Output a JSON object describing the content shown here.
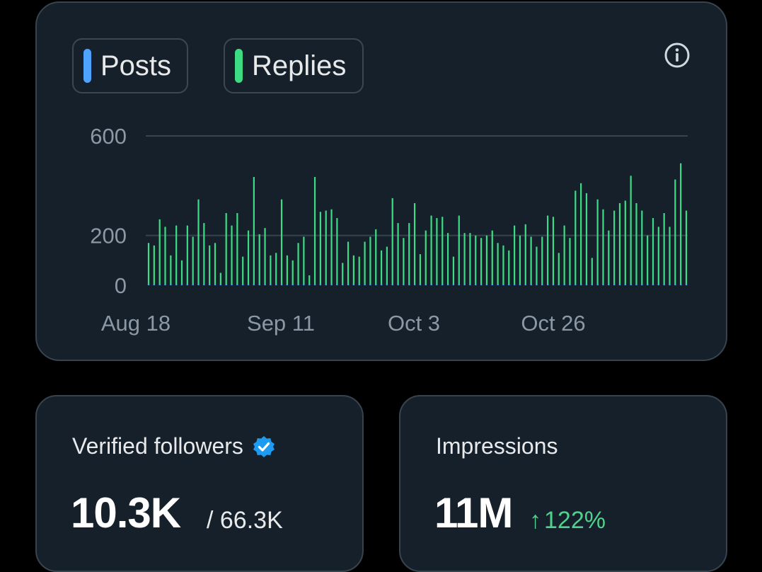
{
  "chart_card": {
    "legend": [
      {
        "label": "Posts",
        "color": "#4da3ff"
      },
      {
        "label": "Replies",
        "color": "#3ddc84"
      }
    ],
    "info_icon": "info-circle-icon"
  },
  "chart_data": {
    "type": "bar",
    "y_ticks": [
      "600",
      "200",
      "0"
    ],
    "x_ticks": [
      "Aug 18",
      "Sep 11",
      "Oct 3",
      "Oct 26"
    ],
    "ylim": [
      0,
      600
    ],
    "grid": true,
    "series": [
      {
        "name": "Replies",
        "color": "#3ddc84",
        "values": [
          170,
          160,
          265,
          235,
          120,
          240,
          100,
          240,
          195,
          345,
          250,
          160,
          170,
          50,
          290,
          240,
          290,
          115,
          220,
          435,
          205,
          230,
          120,
          130,
          345,
          120,
          100,
          170,
          195,
          40,
          435,
          295,
          300,
          305,
          270,
          90,
          175,
          120,
          115,
          175,
          195,
          225,
          140,
          155,
          350,
          250,
          190,
          250,
          330,
          125,
          220,
          280,
          270,
          275,
          210,
          115,
          280,
          210,
          210,
          200,
          190,
          200,
          220,
          170,
          160,
          140,
          240,
          200,
          245,
          195,
          155,
          195,
          280,
          275,
          130,
          240,
          190,
          380,
          410,
          370,
          110,
          345,
          305,
          220,
          300,
          330,
          340,
          440,
          330,
          300,
          200,
          270,
          235,
          290,
          235,
          425,
          490,
          300
        ]
      },
      {
        "name": "Posts",
        "color": "#4da3ff",
        "values": [
          6,
          6,
          6,
          6,
          6,
          6,
          6,
          6,
          6,
          6,
          6,
          6,
          6,
          6,
          6,
          6,
          6,
          6,
          6,
          6,
          6,
          6,
          6,
          6,
          6,
          6,
          6,
          6,
          6,
          6,
          6,
          6,
          6,
          6,
          6,
          6,
          6,
          6,
          6,
          6,
          6,
          6,
          6,
          6,
          6,
          6,
          6,
          6,
          6,
          6,
          6,
          6,
          6,
          6,
          6,
          6,
          6,
          6,
          6,
          6,
          6,
          6,
          6,
          6,
          6,
          6,
          6,
          6,
          6,
          6,
          6,
          6,
          6,
          6,
          6,
          6,
          6,
          6,
          6,
          6,
          6,
          6,
          6,
          6,
          6,
          6,
          6,
          6,
          6,
          6,
          6,
          6,
          6,
          6,
          6,
          6,
          6,
          6
        ]
      }
    ]
  },
  "followers": {
    "label": "Verified followers",
    "badge_icon": "verified-badge-icon",
    "badge_color": "#1d9bf0",
    "value": "10.3K",
    "total": "/ 66.3K"
  },
  "impressions": {
    "label": "Impressions",
    "value": "11M",
    "arrow": "↑",
    "change": "122%",
    "change_color": "#4fd18b"
  }
}
